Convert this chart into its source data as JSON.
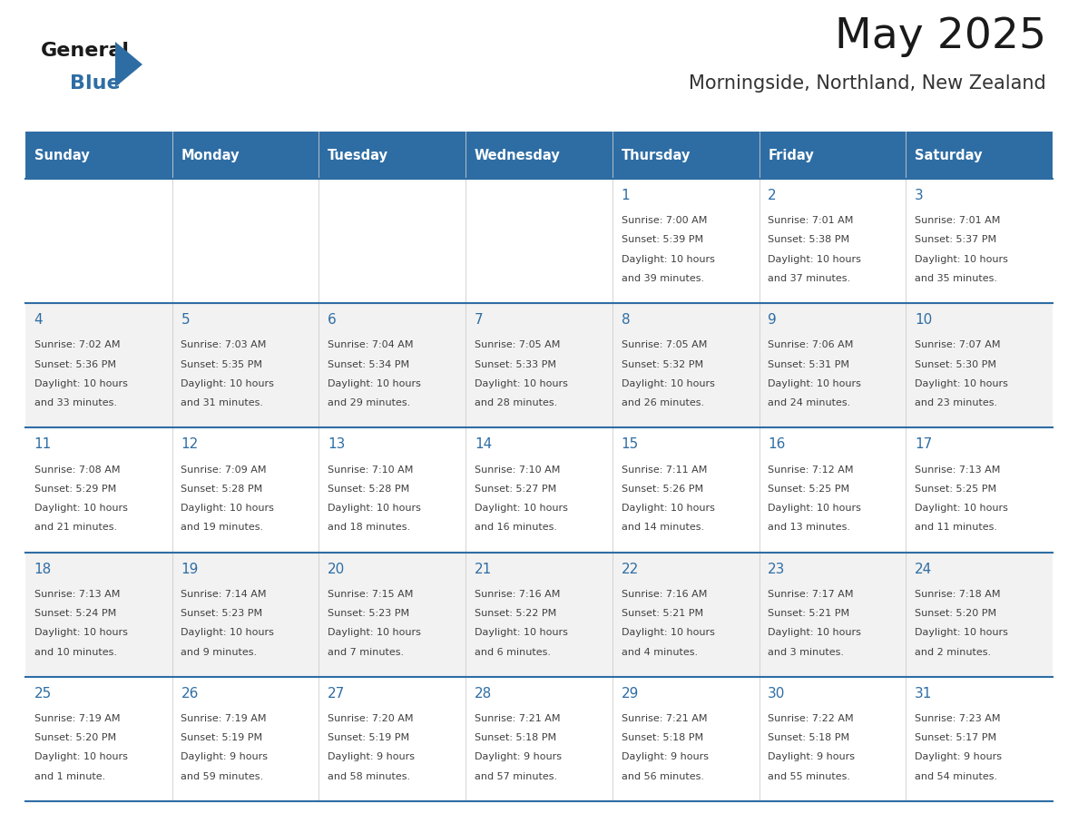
{
  "title": "May 2025",
  "subtitle": "Morningside, Northland, New Zealand",
  "days_of_week": [
    "Sunday",
    "Monday",
    "Tuesday",
    "Wednesday",
    "Thursday",
    "Friday",
    "Saturday"
  ],
  "header_bg": "#2E6DA4",
  "header_text": "#FFFFFF",
  "row_bg_white": "#FFFFFF",
  "row_bg_gray": "#F2F2F2",
  "cell_text_color": "#404040",
  "day_num_color": "#2E6DA4",
  "border_color": "#2E6DA4",
  "grid_color": "#CCCCCC",
  "calendar_data": [
    [
      null,
      null,
      null,
      null,
      {
        "day": "1",
        "sunrise": "7:00 AM",
        "sunset": "5:39 PM",
        "daylight_line1": "Daylight: 10 hours",
        "daylight_line2": "and 39 minutes."
      },
      {
        "day": "2",
        "sunrise": "7:01 AM",
        "sunset": "5:38 PM",
        "daylight_line1": "Daylight: 10 hours",
        "daylight_line2": "and 37 minutes."
      },
      {
        "day": "3",
        "sunrise": "7:01 AM",
        "sunset": "5:37 PM",
        "daylight_line1": "Daylight: 10 hours",
        "daylight_line2": "and 35 minutes."
      }
    ],
    [
      {
        "day": "4",
        "sunrise": "7:02 AM",
        "sunset": "5:36 PM",
        "daylight_line1": "Daylight: 10 hours",
        "daylight_line2": "and 33 minutes."
      },
      {
        "day": "5",
        "sunrise": "7:03 AM",
        "sunset": "5:35 PM",
        "daylight_line1": "Daylight: 10 hours",
        "daylight_line2": "and 31 minutes."
      },
      {
        "day": "6",
        "sunrise": "7:04 AM",
        "sunset": "5:34 PM",
        "daylight_line1": "Daylight: 10 hours",
        "daylight_line2": "and 29 minutes."
      },
      {
        "day": "7",
        "sunrise": "7:05 AM",
        "sunset": "5:33 PM",
        "daylight_line1": "Daylight: 10 hours",
        "daylight_line2": "and 28 minutes."
      },
      {
        "day": "8",
        "sunrise": "7:05 AM",
        "sunset": "5:32 PM",
        "daylight_line1": "Daylight: 10 hours",
        "daylight_line2": "and 26 minutes."
      },
      {
        "day": "9",
        "sunrise": "7:06 AM",
        "sunset": "5:31 PM",
        "daylight_line1": "Daylight: 10 hours",
        "daylight_line2": "and 24 minutes."
      },
      {
        "day": "10",
        "sunrise": "7:07 AM",
        "sunset": "5:30 PM",
        "daylight_line1": "Daylight: 10 hours",
        "daylight_line2": "and 23 minutes."
      }
    ],
    [
      {
        "day": "11",
        "sunrise": "7:08 AM",
        "sunset": "5:29 PM",
        "daylight_line1": "Daylight: 10 hours",
        "daylight_line2": "and 21 minutes."
      },
      {
        "day": "12",
        "sunrise": "7:09 AM",
        "sunset": "5:28 PM",
        "daylight_line1": "Daylight: 10 hours",
        "daylight_line2": "and 19 minutes."
      },
      {
        "day": "13",
        "sunrise": "7:10 AM",
        "sunset": "5:28 PM",
        "daylight_line1": "Daylight: 10 hours",
        "daylight_line2": "and 18 minutes."
      },
      {
        "day": "14",
        "sunrise": "7:10 AM",
        "sunset": "5:27 PM",
        "daylight_line1": "Daylight: 10 hours",
        "daylight_line2": "and 16 minutes."
      },
      {
        "day": "15",
        "sunrise": "7:11 AM",
        "sunset": "5:26 PM",
        "daylight_line1": "Daylight: 10 hours",
        "daylight_line2": "and 14 minutes."
      },
      {
        "day": "16",
        "sunrise": "7:12 AM",
        "sunset": "5:25 PM",
        "daylight_line1": "Daylight: 10 hours",
        "daylight_line2": "and 13 minutes."
      },
      {
        "day": "17",
        "sunrise": "7:13 AM",
        "sunset": "5:25 PM",
        "daylight_line1": "Daylight: 10 hours",
        "daylight_line2": "and 11 minutes."
      }
    ],
    [
      {
        "day": "18",
        "sunrise": "7:13 AM",
        "sunset": "5:24 PM",
        "daylight_line1": "Daylight: 10 hours",
        "daylight_line2": "and 10 minutes."
      },
      {
        "day": "19",
        "sunrise": "7:14 AM",
        "sunset": "5:23 PM",
        "daylight_line1": "Daylight: 10 hours",
        "daylight_line2": "and 9 minutes."
      },
      {
        "day": "20",
        "sunrise": "7:15 AM",
        "sunset": "5:23 PM",
        "daylight_line1": "Daylight: 10 hours",
        "daylight_line2": "and 7 minutes."
      },
      {
        "day": "21",
        "sunrise": "7:16 AM",
        "sunset": "5:22 PM",
        "daylight_line1": "Daylight: 10 hours",
        "daylight_line2": "and 6 minutes."
      },
      {
        "day": "22",
        "sunrise": "7:16 AM",
        "sunset": "5:21 PM",
        "daylight_line1": "Daylight: 10 hours",
        "daylight_line2": "and 4 minutes."
      },
      {
        "day": "23",
        "sunrise": "7:17 AM",
        "sunset": "5:21 PM",
        "daylight_line1": "Daylight: 10 hours",
        "daylight_line2": "and 3 minutes."
      },
      {
        "day": "24",
        "sunrise": "7:18 AM",
        "sunset": "5:20 PM",
        "daylight_line1": "Daylight: 10 hours",
        "daylight_line2": "and 2 minutes."
      }
    ],
    [
      {
        "day": "25",
        "sunrise": "7:19 AM",
        "sunset": "5:20 PM",
        "daylight_line1": "Daylight: 10 hours",
        "daylight_line2": "and 1 minute."
      },
      {
        "day": "26",
        "sunrise": "7:19 AM",
        "sunset": "5:19 PM",
        "daylight_line1": "Daylight: 9 hours",
        "daylight_line2": "and 59 minutes."
      },
      {
        "day": "27",
        "sunrise": "7:20 AM",
        "sunset": "5:19 PM",
        "daylight_line1": "Daylight: 9 hours",
        "daylight_line2": "and 58 minutes."
      },
      {
        "day": "28",
        "sunrise": "7:21 AM",
        "sunset": "5:18 PM",
        "daylight_line1": "Daylight: 9 hours",
        "daylight_line2": "and 57 minutes."
      },
      {
        "day": "29",
        "sunrise": "7:21 AM",
        "sunset": "5:18 PM",
        "daylight_line1": "Daylight: 9 hours",
        "daylight_line2": "and 56 minutes."
      },
      {
        "day": "30",
        "sunrise": "7:22 AM",
        "sunset": "5:18 PM",
        "daylight_line1": "Daylight: 9 hours",
        "daylight_line2": "and 55 minutes."
      },
      {
        "day": "31",
        "sunrise": "7:23 AM",
        "sunset": "5:17 PM",
        "daylight_line1": "Daylight: 9 hours",
        "daylight_line2": "and 54 minutes."
      }
    ]
  ]
}
